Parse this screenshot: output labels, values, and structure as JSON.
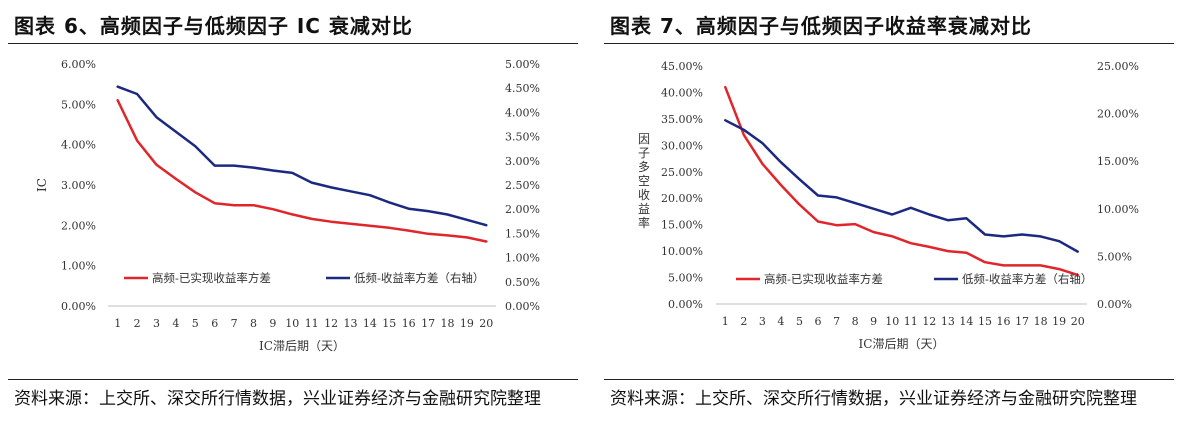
{
  "panels": [
    {
      "title": "图表 6、高频因子与低频因子 IC 衰减对比",
      "source": "资料来源：上交所、深交所行情数据，兴业证券经济与金融研究院整理"
    },
    {
      "title": "图表 7、高频因子与低频因子收益率衰减对比",
      "source": "资料来源：上交所、深交所行情数据，兴业证券经济与金融研究院整理"
    }
  ],
  "chart_data": [
    {
      "type": "line",
      "x": [
        1,
        2,
        3,
        4,
        5,
        6,
        7,
        8,
        9,
        10,
        11,
        12,
        13,
        14,
        15,
        16,
        17,
        18,
        19,
        20
      ],
      "xlabel": "IC滞后期（天）",
      "ylabel": "IC",
      "ylim": [
        0,
        6
      ],
      "y2lim": [
        0,
        5
      ],
      "yticks": [
        "0.00%",
        "1.00%",
        "2.00%",
        "3.00%",
        "4.00%",
        "5.00%",
        "6.00%"
      ],
      "y2ticks": [
        "0.00%",
        "0.50%",
        "1.00%",
        "1.50%",
        "2.00%",
        "2.50%",
        "3.00%",
        "3.50%",
        "4.00%",
        "4.50%",
        "5.00%"
      ],
      "legend_position": "bottom",
      "grid": false,
      "series": [
        {
          "name": "高频-已实现收益率方差",
          "axis": "left",
          "color": "#e0262b",
          "values": [
            5.1,
            4.1,
            3.5,
            3.15,
            2.82,
            2.55,
            2.5,
            2.5,
            2.4,
            2.27,
            2.16,
            2.09,
            2.04,
            1.99,
            1.94,
            1.87,
            1.79,
            1.75,
            1.7,
            1.6
          ]
        },
        {
          "name": "低频-收益率方差（右轴）",
          "axis": "right",
          "color": "#1b2a80",
          "values": [
            4.53,
            4.38,
            3.9,
            3.6,
            3.3,
            2.9,
            2.9,
            2.86,
            2.8,
            2.75,
            2.55,
            2.45,
            2.37,
            2.29,
            2.14,
            2.01,
            1.96,
            1.89,
            1.78,
            1.67
          ]
        }
      ]
    },
    {
      "type": "line",
      "x": [
        1,
        2,
        3,
        4,
        5,
        6,
        7,
        8,
        9,
        10,
        11,
        12,
        13,
        14,
        15,
        16,
        17,
        18,
        19,
        20
      ],
      "xlabel": "IC滞后期（天）",
      "ylabel": "因子多空收益率",
      "ylim": [
        0,
        45
      ],
      "y2lim": [
        0,
        25
      ],
      "yticks": [
        "0.00%",
        "5.00%",
        "10.00%",
        "15.00%",
        "20.00%",
        "25.00%",
        "30.00%",
        "35.00%",
        "40.00%",
        "45.00%"
      ],
      "y2ticks": [
        "0.00%",
        "5.00%",
        "10.00%",
        "15.00%",
        "20.00%",
        "25.00%"
      ],
      "legend_position": "bottom",
      "grid": false,
      "series": [
        {
          "name": "高频-已实现收益率方差",
          "axis": "left",
          "color": "#e0262b",
          "values": [
            41.0,
            32.0,
            26.5,
            22.5,
            18.8,
            15.6,
            14.9,
            15.1,
            13.6,
            12.8,
            11.5,
            10.8,
            10.0,
            9.7,
            7.9,
            7.3,
            7.3,
            7.3,
            6.6,
            5.5
          ]
        },
        {
          "name": "低频-收益率方差（右轴）",
          "axis": "right",
          "color": "#1b2a80",
          "values": [
            19.3,
            18.3,
            16.9,
            14.9,
            13.1,
            11.4,
            11.2,
            10.6,
            10.0,
            9.4,
            10.1,
            9.4,
            8.8,
            9.0,
            7.3,
            7.1,
            7.3,
            7.1,
            6.6,
            5.5
          ]
        }
      ]
    }
  ]
}
